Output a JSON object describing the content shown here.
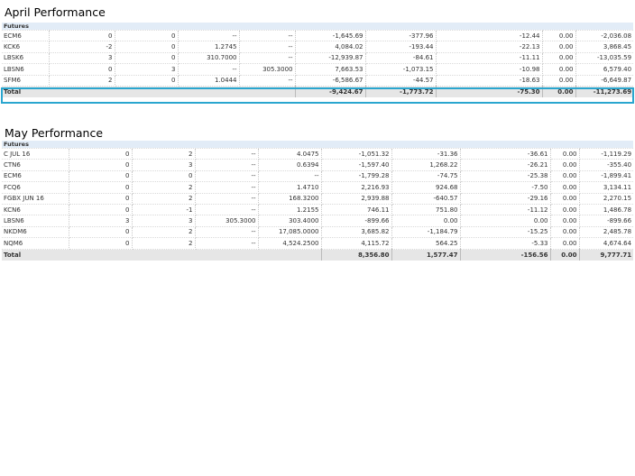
{
  "april": {
    "title": "April Performance",
    "group_label": "Futures",
    "rows": [
      {
        "name": "ECM6",
        "c1": "0",
        "c2": "0",
        "c3": "--",
        "c4": "--",
        "c5": "-1,645.69",
        "c6": "-377.96",
        "c7": "-12.44",
        "c8": "0.00",
        "c9": "-2,036.08"
      },
      {
        "name": "KCK6",
        "c1": "-2",
        "c2": "0",
        "c3": "1.2745",
        "c4": "--",
        "c5": "4,084.02",
        "c6": "-193.44",
        "c7": "-22.13",
        "c8": "0.00",
        "c9": "3,868.45"
      },
      {
        "name": "LBSK6",
        "c1": "3",
        "c2": "0",
        "c3": "310.7000",
        "c4": "--",
        "c5": "-12,939.87",
        "c6": "-84.61",
        "c7": "-11.11",
        "c8": "0.00",
        "c9": "-13,035.59"
      },
      {
        "name": "LBSN6",
        "c1": "0",
        "c2": "3",
        "c3": "--",
        "c4": "305.3000",
        "c5": "7,663.53",
        "c6": "-1,073.15",
        "c7": "-10.98",
        "c8": "0.00",
        "c9": "6,579.40"
      },
      {
        "name": "SFM6",
        "c1": "2",
        "c2": "0",
        "c3": "1.0444",
        "c4": "--",
        "c5": "-6,586.67",
        "c6": "-44.57",
        "c7": "-18.63",
        "c8": "0.00",
        "c9": "-6,649.87"
      }
    ],
    "total": {
      "label": "Total",
      "c5": "-9,424.67",
      "c6": "-1,773.72",
      "c7": "-75.30",
      "c8": "0.00",
      "c9": "-11,273.69"
    }
  },
  "may": {
    "title": "May Performance",
    "group_label": "Futures",
    "rows": [
      {
        "name": "C JUL 16",
        "c1": "0",
        "c2": "2",
        "c3": "--",
        "c4": "4.0475",
        "c5": "-1,051.32",
        "c6": "-31.36",
        "c7": "-36.61",
        "c8": "0.00",
        "c9": "-1,119.29"
      },
      {
        "name": "CTN6",
        "c1": "0",
        "c2": "3",
        "c3": "--",
        "c4": "0.6394",
        "c5": "-1,597.40",
        "c6": "1,268.22",
        "c7": "-26.21",
        "c8": "0.00",
        "c9": "-355.40"
      },
      {
        "name": "ECM6",
        "c1": "0",
        "c2": "0",
        "c3": "--",
        "c4": "--",
        "c5": "-1,799.28",
        "c6": "-74.75",
        "c7": "-25.38",
        "c8": "0.00",
        "c9": "-1,899.41"
      },
      {
        "name": "FCQ6",
        "c1": "0",
        "c2": "2",
        "c3": "--",
        "c4": "1.4710",
        "c5": "2,216.93",
        "c6": "924.68",
        "c7": "-7.50",
        "c8": "0.00",
        "c9": "3,134.11"
      },
      {
        "name": "FGBX JUN 16",
        "c1": "0",
        "c2": "2",
        "c3": "--",
        "c4": "168.3200",
        "c5": "2,939.88",
        "c6": "-640.57",
        "c7": "-29.16",
        "c8": "0.00",
        "c9": "2,270.15"
      },
      {
        "name": "KCN6",
        "c1": "0",
        "c2": "-1",
        "c3": "--",
        "c4": "1.2155",
        "c5": "746.11",
        "c6": "751.80",
        "c7": "-11.12",
        "c8": "0.00",
        "c9": "1,486.78"
      },
      {
        "name": "LBSN6",
        "c1": "3",
        "c2": "3",
        "c3": "305.3000",
        "c4": "303.4000",
        "c5": "-899.66",
        "c6": "0.00",
        "c7": "0.00",
        "c8": "0.00",
        "c9": "-899.66"
      },
      {
        "name": "NKDM6",
        "c1": "0",
        "c2": "2",
        "c3": "--",
        "c4": "17,085.0000",
        "c5": "3,685.82",
        "c6": "-1,184.79",
        "c7": "-15.25",
        "c8": "0.00",
        "c9": "2,485.78"
      },
      {
        "name": "NQM6",
        "c1": "0",
        "c2": "2",
        "c3": "--",
        "c4": "4,524.2500",
        "c5": "4,115.72",
        "c6": "564.25",
        "c7": "-5.33",
        "c8": "0.00",
        "c9": "4,674.64"
      }
    ],
    "total": {
      "label": "Total",
      "c5": "8,356.80",
      "c6": "1,577.47",
      "c7": "-156.56",
      "c8": "0.00",
      "c9": "9,777.71"
    }
  },
  "colors": {
    "group_header_bg": "#e2ecf7",
    "total_row_bg": "#e6e6e6",
    "total_highlight_border": "#2aa6cf"
  }
}
